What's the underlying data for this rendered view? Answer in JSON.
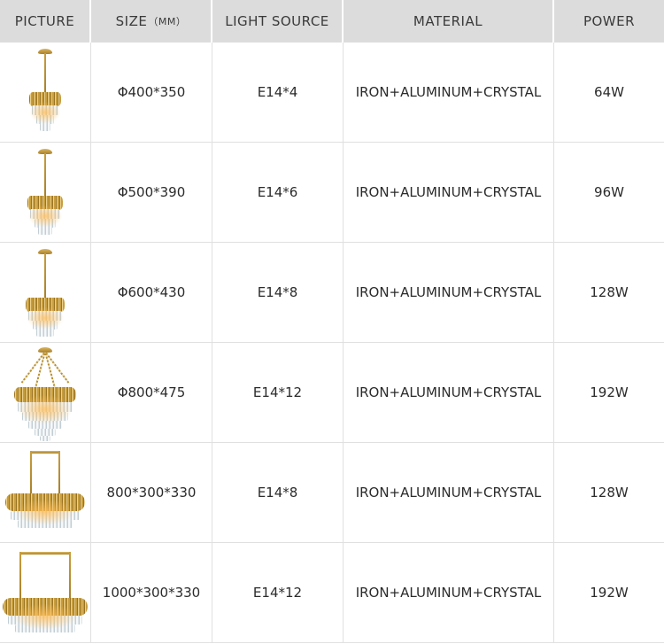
{
  "table": {
    "headers": [
      {
        "label": "PICTURE",
        "suffix": ""
      },
      {
        "label": "SIZE",
        "suffix": "（MM）"
      },
      {
        "label": "LIGHT SOURCE",
        "suffix": ""
      },
      {
        "label": "MATERIAL",
        "suffix": ""
      },
      {
        "label": "POWER",
        "suffix": ""
      }
    ],
    "rows": [
      {
        "picture": "round-gold-crystal-chandelier-small",
        "size": "Φ400*350",
        "light_source": "E14*4",
        "material": "IRON+ALUMINUM+CRYSTAL",
        "power": "64W"
      },
      {
        "picture": "round-gold-crystal-chandelier-medium",
        "size": "Φ500*390",
        "light_source": "E14*6",
        "material": "IRON+ALUMINUM+CRYSTAL",
        "power": "96W"
      },
      {
        "picture": "round-gold-crystal-chandelier-large",
        "size": "Φ600*430",
        "light_source": "E14*8",
        "material": "IRON+ALUMINUM+CRYSTAL",
        "power": "128W"
      },
      {
        "picture": "cone-gold-crystal-chandelier-chains",
        "size": "Φ800*475",
        "light_source": "E14*12",
        "material": "IRON+ALUMINUM+CRYSTAL",
        "power": "192W"
      },
      {
        "picture": "linear-gold-crystal-chandelier",
        "size": "800*300*330",
        "light_source": "E14*8",
        "material": "IRON+ALUMINUM+CRYSTAL",
        "power": "128W"
      },
      {
        "picture": "linear-gold-crystal-chandelier-long",
        "size": "1000*300*330",
        "light_source": "E14*12",
        "material": "IRON+ALUMINUM+CRYSTAL",
        "power": "192W"
      }
    ]
  },
  "colors": {
    "gold": "#c79d3e",
    "crystal": "#dde4e8",
    "header_bg": "#dcdcdc",
    "grid_line": "#e0e0e0"
  }
}
